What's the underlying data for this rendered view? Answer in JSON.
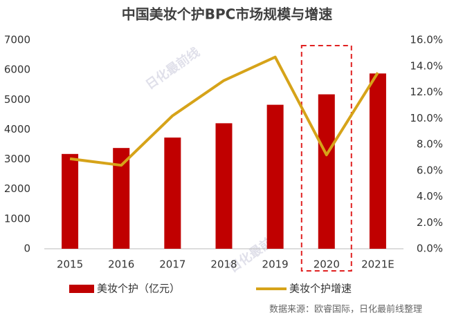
{
  "chart_data": {
    "type": "bar_line",
    "title": "中国美妆个护BPC市场规模与增速",
    "categories": [
      "2015",
      "2016",
      "2017",
      "2018",
      "2019",
      "2020",
      "2021E"
    ],
    "series": [
      {
        "name": "美妆个护（亿元）",
        "type": "bar",
        "color": "#c00000",
        "values": [
          3180,
          3380,
          3730,
          4210,
          4830,
          5180,
          5880
        ]
      },
      {
        "name": "美妆个护增速",
        "type": "line",
        "axis": "y2",
        "color": "#d6a319",
        "values": [
          6.9,
          6.4,
          10.2,
          12.9,
          14.7,
          7.2,
          13.5
        ]
      }
    ],
    "ylim": [
      0,
      7000
    ],
    "yticks": [
      0,
      1000,
      2000,
      3000,
      4000,
      5000,
      6000,
      7000
    ],
    "y2lim": [
      0,
      16
    ],
    "y2ticks": [
      {
        "value": 0,
        "label": "0.0%"
      },
      {
        "value": 2,
        "label": "2.0%"
      },
      {
        "value": 4,
        "label": "4.0%"
      },
      {
        "value": 6,
        "label": "6.0%"
      },
      {
        "value": 8,
        "label": "8.0%"
      },
      {
        "value": 10,
        "label": "10.0%"
      },
      {
        "value": 12,
        "label": "12.0%"
      },
      {
        "value": 14,
        "label": "14.0%"
      },
      {
        "value": 16,
        "label": "16.0%"
      }
    ],
    "highlight_index": 5,
    "legend": "bottom",
    "source": "数据来源：欧睿国际，日化最前线整理",
    "watermark": "日化最前线"
  }
}
